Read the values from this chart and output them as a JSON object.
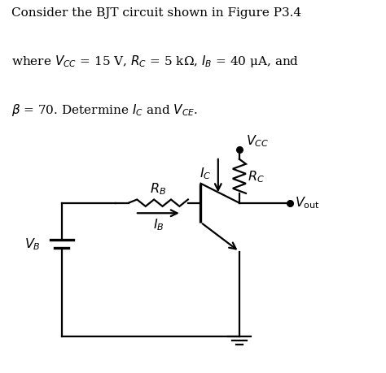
{
  "bg_color": "#ffffff",
  "text_color": "#000000",
  "line_color": "#000000",
  "title_line1": "Consider the BJT circuit shown in Figure P3.4",
  "title_line2": "where $V_{CC}$ = 15 V, $R_C$ = 5 kΩ, $I_B$ = 40 μA, and",
  "title_line3": "$\\beta$ = 70. Determine $I_C$ and $V_{CE}$.",
  "figsize": [
    4.74,
    4.6
  ],
  "dpi": 100
}
